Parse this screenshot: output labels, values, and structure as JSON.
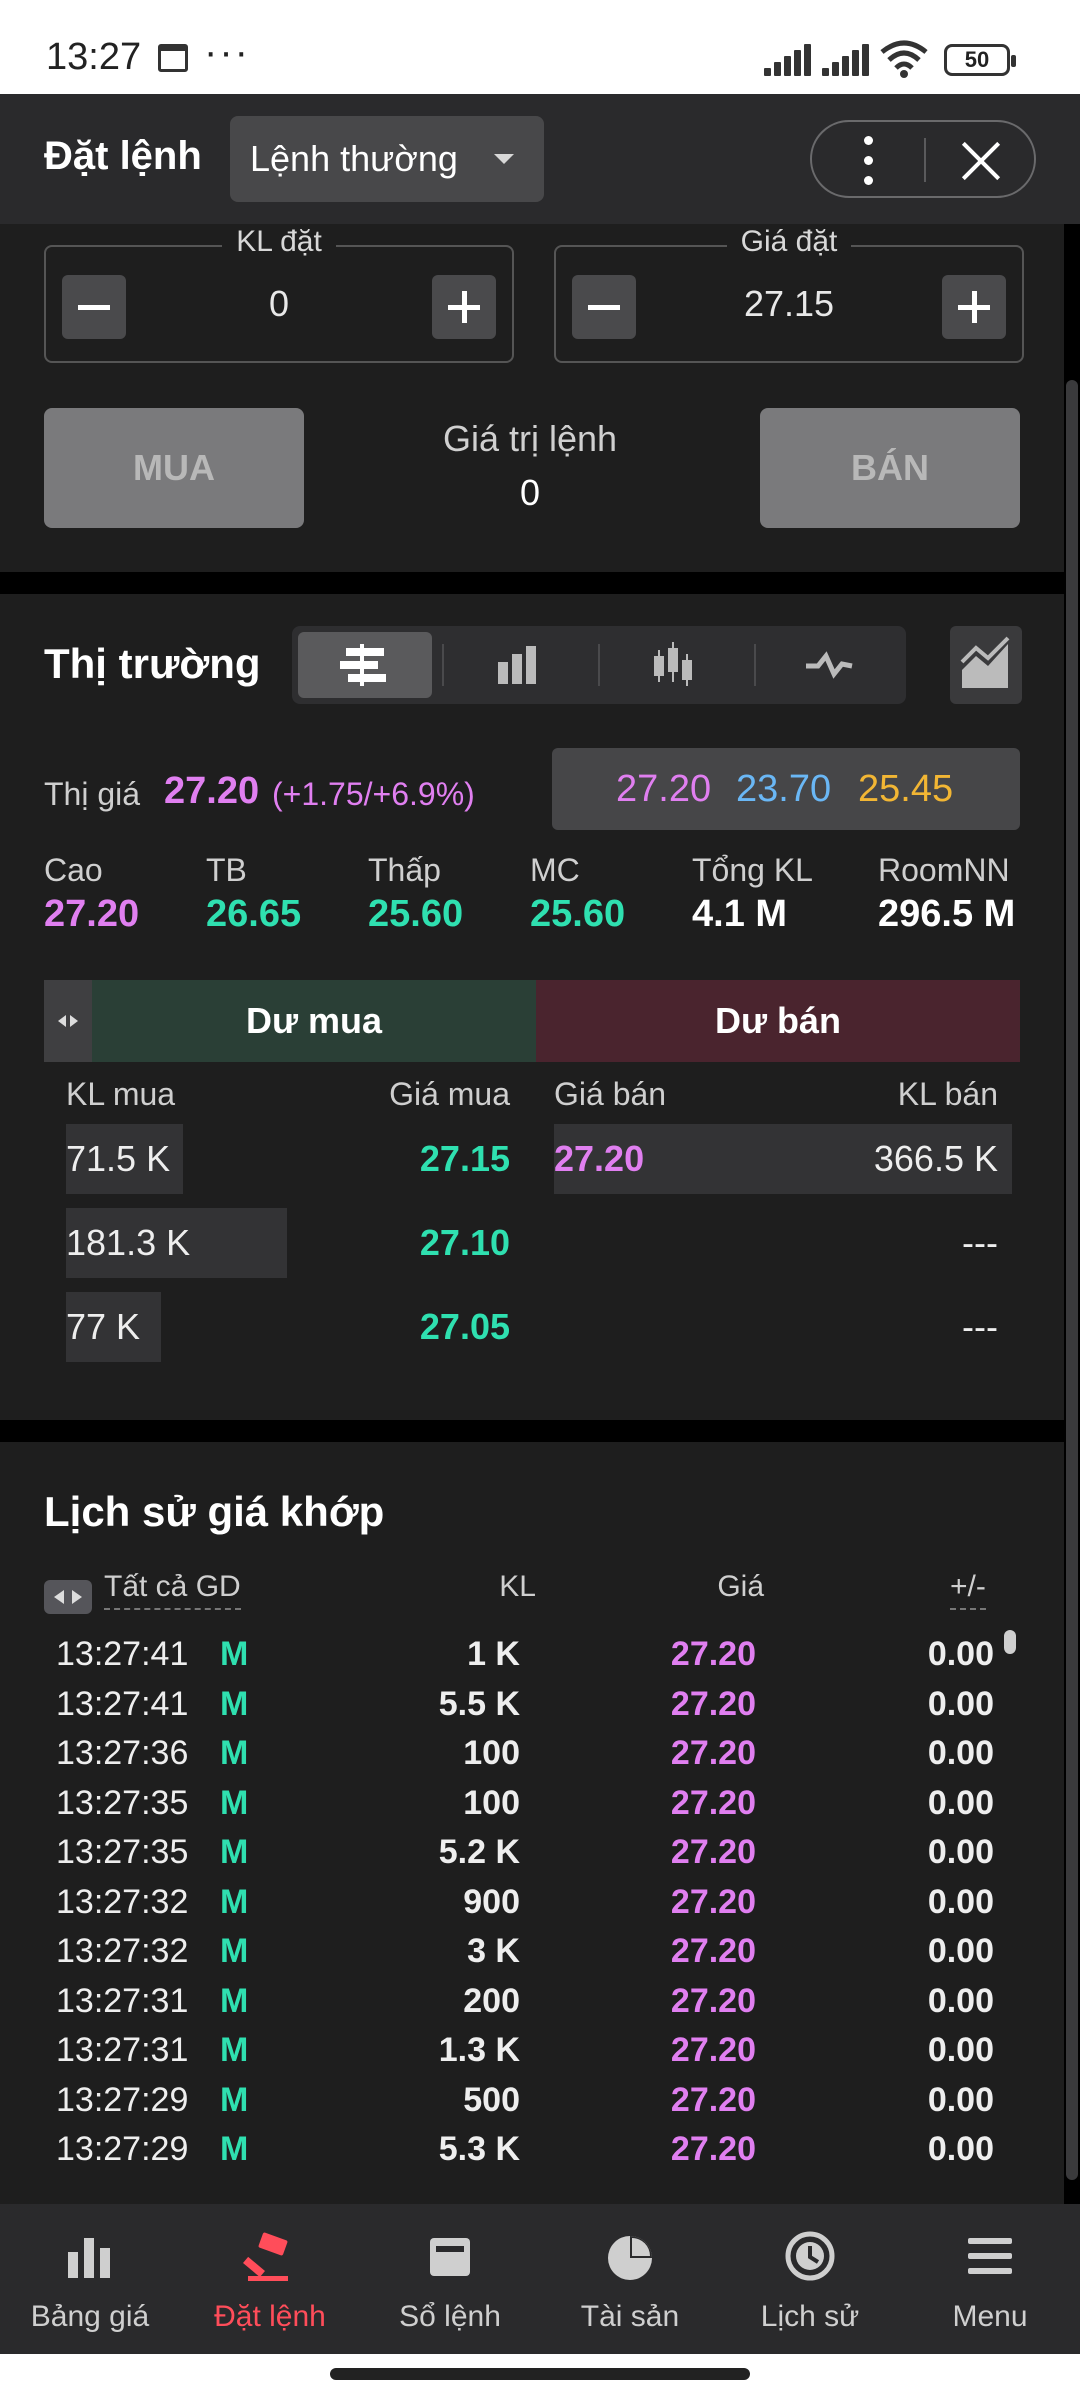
{
  "status_bar": {
    "time": "13:27",
    "battery": "50"
  },
  "header": {
    "title": "Đặt lệnh",
    "order_type": "Lệnh thường"
  },
  "order_form": {
    "quantity": {
      "label": "KL đặt",
      "value": "0"
    },
    "price": {
      "label": "Giá đặt",
      "value": "27.15"
    },
    "buy_label": "MUA",
    "sell_label": "BÁN",
    "order_value_label": "Giá trị lệnh",
    "order_value": "0"
  },
  "market": {
    "title": "Thị trường",
    "market_price_label": "Thị giá",
    "market_price": "27.20",
    "market_change": "(+1.75/+6.9%)",
    "ref_prices": {
      "ceiling": "27.20",
      "floor": "23.70",
      "reference": "25.45"
    },
    "colors": {
      "ceiling": "#e07ff0",
      "floor": "#6ab7f5",
      "reference": "#f2b634",
      "up": "#2fe0b0"
    },
    "stats": [
      {
        "label": "Cao",
        "value": "27.20",
        "color": "#e07ff0"
      },
      {
        "label": "TB",
        "value": "26.65",
        "color": "#2fe0b0"
      },
      {
        "label": "Thấp",
        "value": "25.60",
        "color": "#2fe0b0"
      },
      {
        "label": "MC",
        "value": "25.60",
        "color": "#2fe0b0"
      },
      {
        "label": "Tổng KL",
        "value": "4.1 M",
        "color": "#ffffff"
      },
      {
        "label": "RoomNN",
        "value": "296.5 M",
        "color": "#ffffff"
      }
    ]
  },
  "orderbook": {
    "buy_title": "Dư mua",
    "sell_title": "Dư bán",
    "headers": {
      "buy_vol": "KL mua",
      "buy_price": "Giá mua",
      "sell_price": "Giá bán",
      "sell_vol": "KL bán"
    },
    "rows": [
      {
        "buy_vol": "71.5 K",
        "buy_price": "27.15",
        "sell_price": "27.20",
        "sell_vol": "366.5 K",
        "buy_fill": 0.26,
        "sell_fill": 1.0
      },
      {
        "buy_vol": "181.3 K",
        "buy_price": "27.10",
        "sell_price": "",
        "sell_vol": "---",
        "buy_fill": 0.49,
        "sell_fill": 0
      },
      {
        "buy_vol": "77 K",
        "buy_price": "27.05",
        "sell_price": "",
        "sell_vol": "---",
        "buy_fill": 0.21,
        "sell_fill": 0
      }
    ]
  },
  "history": {
    "title": "Lịch sử giá khớp",
    "headers": {
      "filter": "Tất cả GD",
      "volume": "KL",
      "price": "Giá",
      "change": "+/-"
    },
    "rows": [
      {
        "time": "13:27:41",
        "side": "M",
        "volume": "1 K",
        "price": "27.20",
        "change": "0.00"
      },
      {
        "time": "13:27:41",
        "side": "M",
        "volume": "5.5 K",
        "price": "27.20",
        "change": "0.00"
      },
      {
        "time": "13:27:36",
        "side": "M",
        "volume": "100",
        "price": "27.20",
        "change": "0.00"
      },
      {
        "time": "13:27:35",
        "side": "M",
        "volume": "100",
        "price": "27.20",
        "change": "0.00"
      },
      {
        "time": "13:27:35",
        "side": "M",
        "volume": "5.2 K",
        "price": "27.20",
        "change": "0.00"
      },
      {
        "time": "13:27:32",
        "side": "M",
        "volume": "900",
        "price": "27.20",
        "change": "0.00"
      },
      {
        "time": "13:27:32",
        "side": "M",
        "volume": "3 K",
        "price": "27.20",
        "change": "0.00"
      },
      {
        "time": "13:27:31",
        "side": "M",
        "volume": "200",
        "price": "27.20",
        "change": "0.00"
      },
      {
        "time": "13:27:31",
        "side": "M",
        "volume": "1.3 K",
        "price": "27.20",
        "change": "0.00"
      },
      {
        "time": "13:27:29",
        "side": "M",
        "volume": "500",
        "price": "27.20",
        "change": "0.00"
      },
      {
        "time": "13:27:29",
        "side": "M",
        "volume": "5.3 K",
        "price": "27.20",
        "change": "0.00"
      }
    ]
  },
  "bottom_nav": [
    {
      "label": "Bảng giá",
      "icon": "price-board-icon",
      "active": false
    },
    {
      "label": "Đặt lệnh",
      "icon": "gavel-icon",
      "active": true
    },
    {
      "label": "Sổ lệnh",
      "icon": "order-book-icon",
      "active": false
    },
    {
      "label": "Tài sản",
      "icon": "pie-chart-icon",
      "active": false
    },
    {
      "label": "Lịch sử",
      "icon": "clock-icon",
      "active": false
    },
    {
      "label": "Menu",
      "icon": "menu-icon",
      "active": false
    }
  ]
}
